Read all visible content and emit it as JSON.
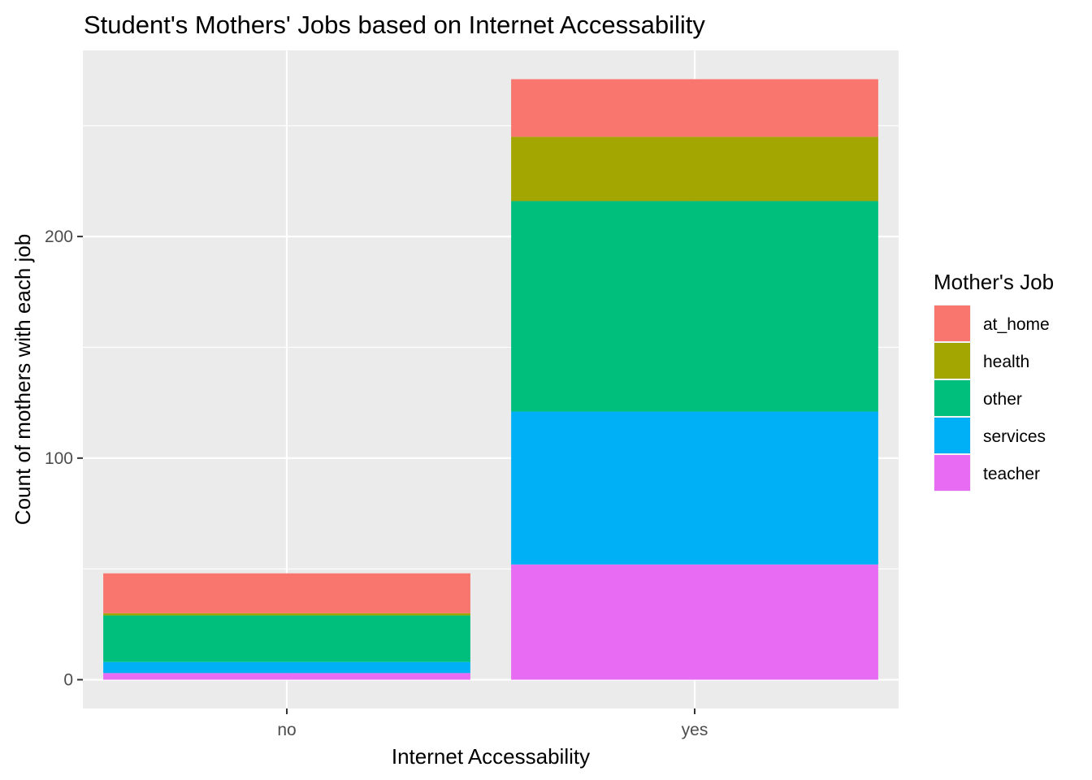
{
  "chart_data": {
    "type": "bar",
    "stacked": true,
    "title": "Student's Mothers' Jobs based on Internet Accessability",
    "xlabel": "Internet Accessability",
    "ylabel": "Count of mothers with each job",
    "categories": [
      "no",
      "yes"
    ],
    "series": [
      {
        "name": "at_home",
        "color": "#F8766D",
        "values": [
          18,
          26
        ]
      },
      {
        "name": "health",
        "color": "#A3A500",
        "values": [
          1,
          29
        ]
      },
      {
        "name": "other",
        "color": "#00BF7D",
        "values": [
          21,
          95
        ]
      },
      {
        "name": "services",
        "color": "#00B0F6",
        "values": [
          5,
          69
        ]
      },
      {
        "name": "teacher",
        "color": "#E76BF3",
        "values": [
          3,
          52
        ]
      }
    ],
    "stack_order_bottom_to_top": [
      "teacher",
      "services",
      "other",
      "health",
      "at_home"
    ],
    "ylim": [
      -13,
      284
    ],
    "yticks": [
      0,
      100,
      200
    ],
    "ytick_labels": [
      "0",
      "100",
      "200"
    ],
    "legend_title": "Mother's Job",
    "legend_position": "right",
    "grid": true,
    "panel_color": "#EBEBEB",
    "grid_color": "#FFFFFF"
  }
}
